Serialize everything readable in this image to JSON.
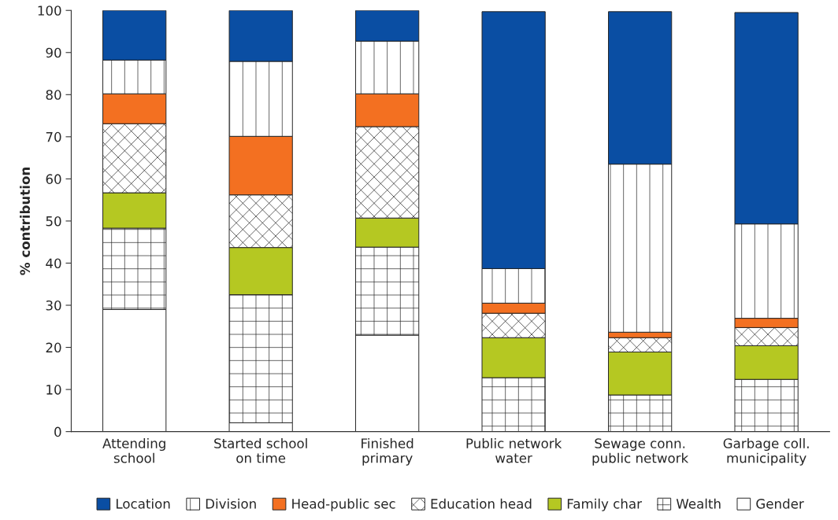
{
  "chart_data": {
    "type": "bar",
    "stacked": true,
    "ylabel": "% contribution",
    "categories": [
      "Attending\nschool",
      "Started school\non time",
      "Finished\nprimary",
      "Public network\nwater",
      "Sewage conn.\npublic network",
      "Garbage coll.\nmunicipality"
    ],
    "series": [
      {
        "name": "Gender",
        "color": "#ffffff",
        "values": [
          29.0,
          2.1,
          22.9,
          null,
          null,
          null
        ]
      },
      {
        "name": "Wealth",
        "color": "#ffffff",
        "values": [
          19.3,
          30.4,
          20.9,
          12.8,
          8.7,
          12.4
        ]
      },
      {
        "name": "Family char",
        "color": "#b5c822",
        "values": [
          8.4,
          11.2,
          6.9,
          9.5,
          10.2,
          8.0
        ]
      },
      {
        "name": "Education head",
        "color": "#ffffff",
        "values": [
          16.4,
          12.5,
          21.7,
          5.8,
          3.4,
          4.3
        ]
      },
      {
        "name": "Head-public sec",
        "color": "#f37021",
        "values": [
          7.1,
          13.9,
          7.8,
          2.4,
          1.3,
          2.2
        ]
      },
      {
        "name": "Division",
        "color": "#ffffff",
        "values": [
          8.0,
          17.8,
          12.5,
          8.2,
          39.9,
          22.4
        ]
      },
      {
        "name": "Location",
        "color": "#0a4ea3",
        "values": [
          11.8,
          12.1,
          7.3,
          61.0,
          36.2,
          50.2
        ]
      }
    ],
    "ylim": [
      0,
      100
    ],
    "yticks": [
      0,
      10,
      20,
      30,
      40,
      50,
      60,
      70,
      80,
      90,
      100
    ],
    "grid": false,
    "legend": "bottom"
  }
}
